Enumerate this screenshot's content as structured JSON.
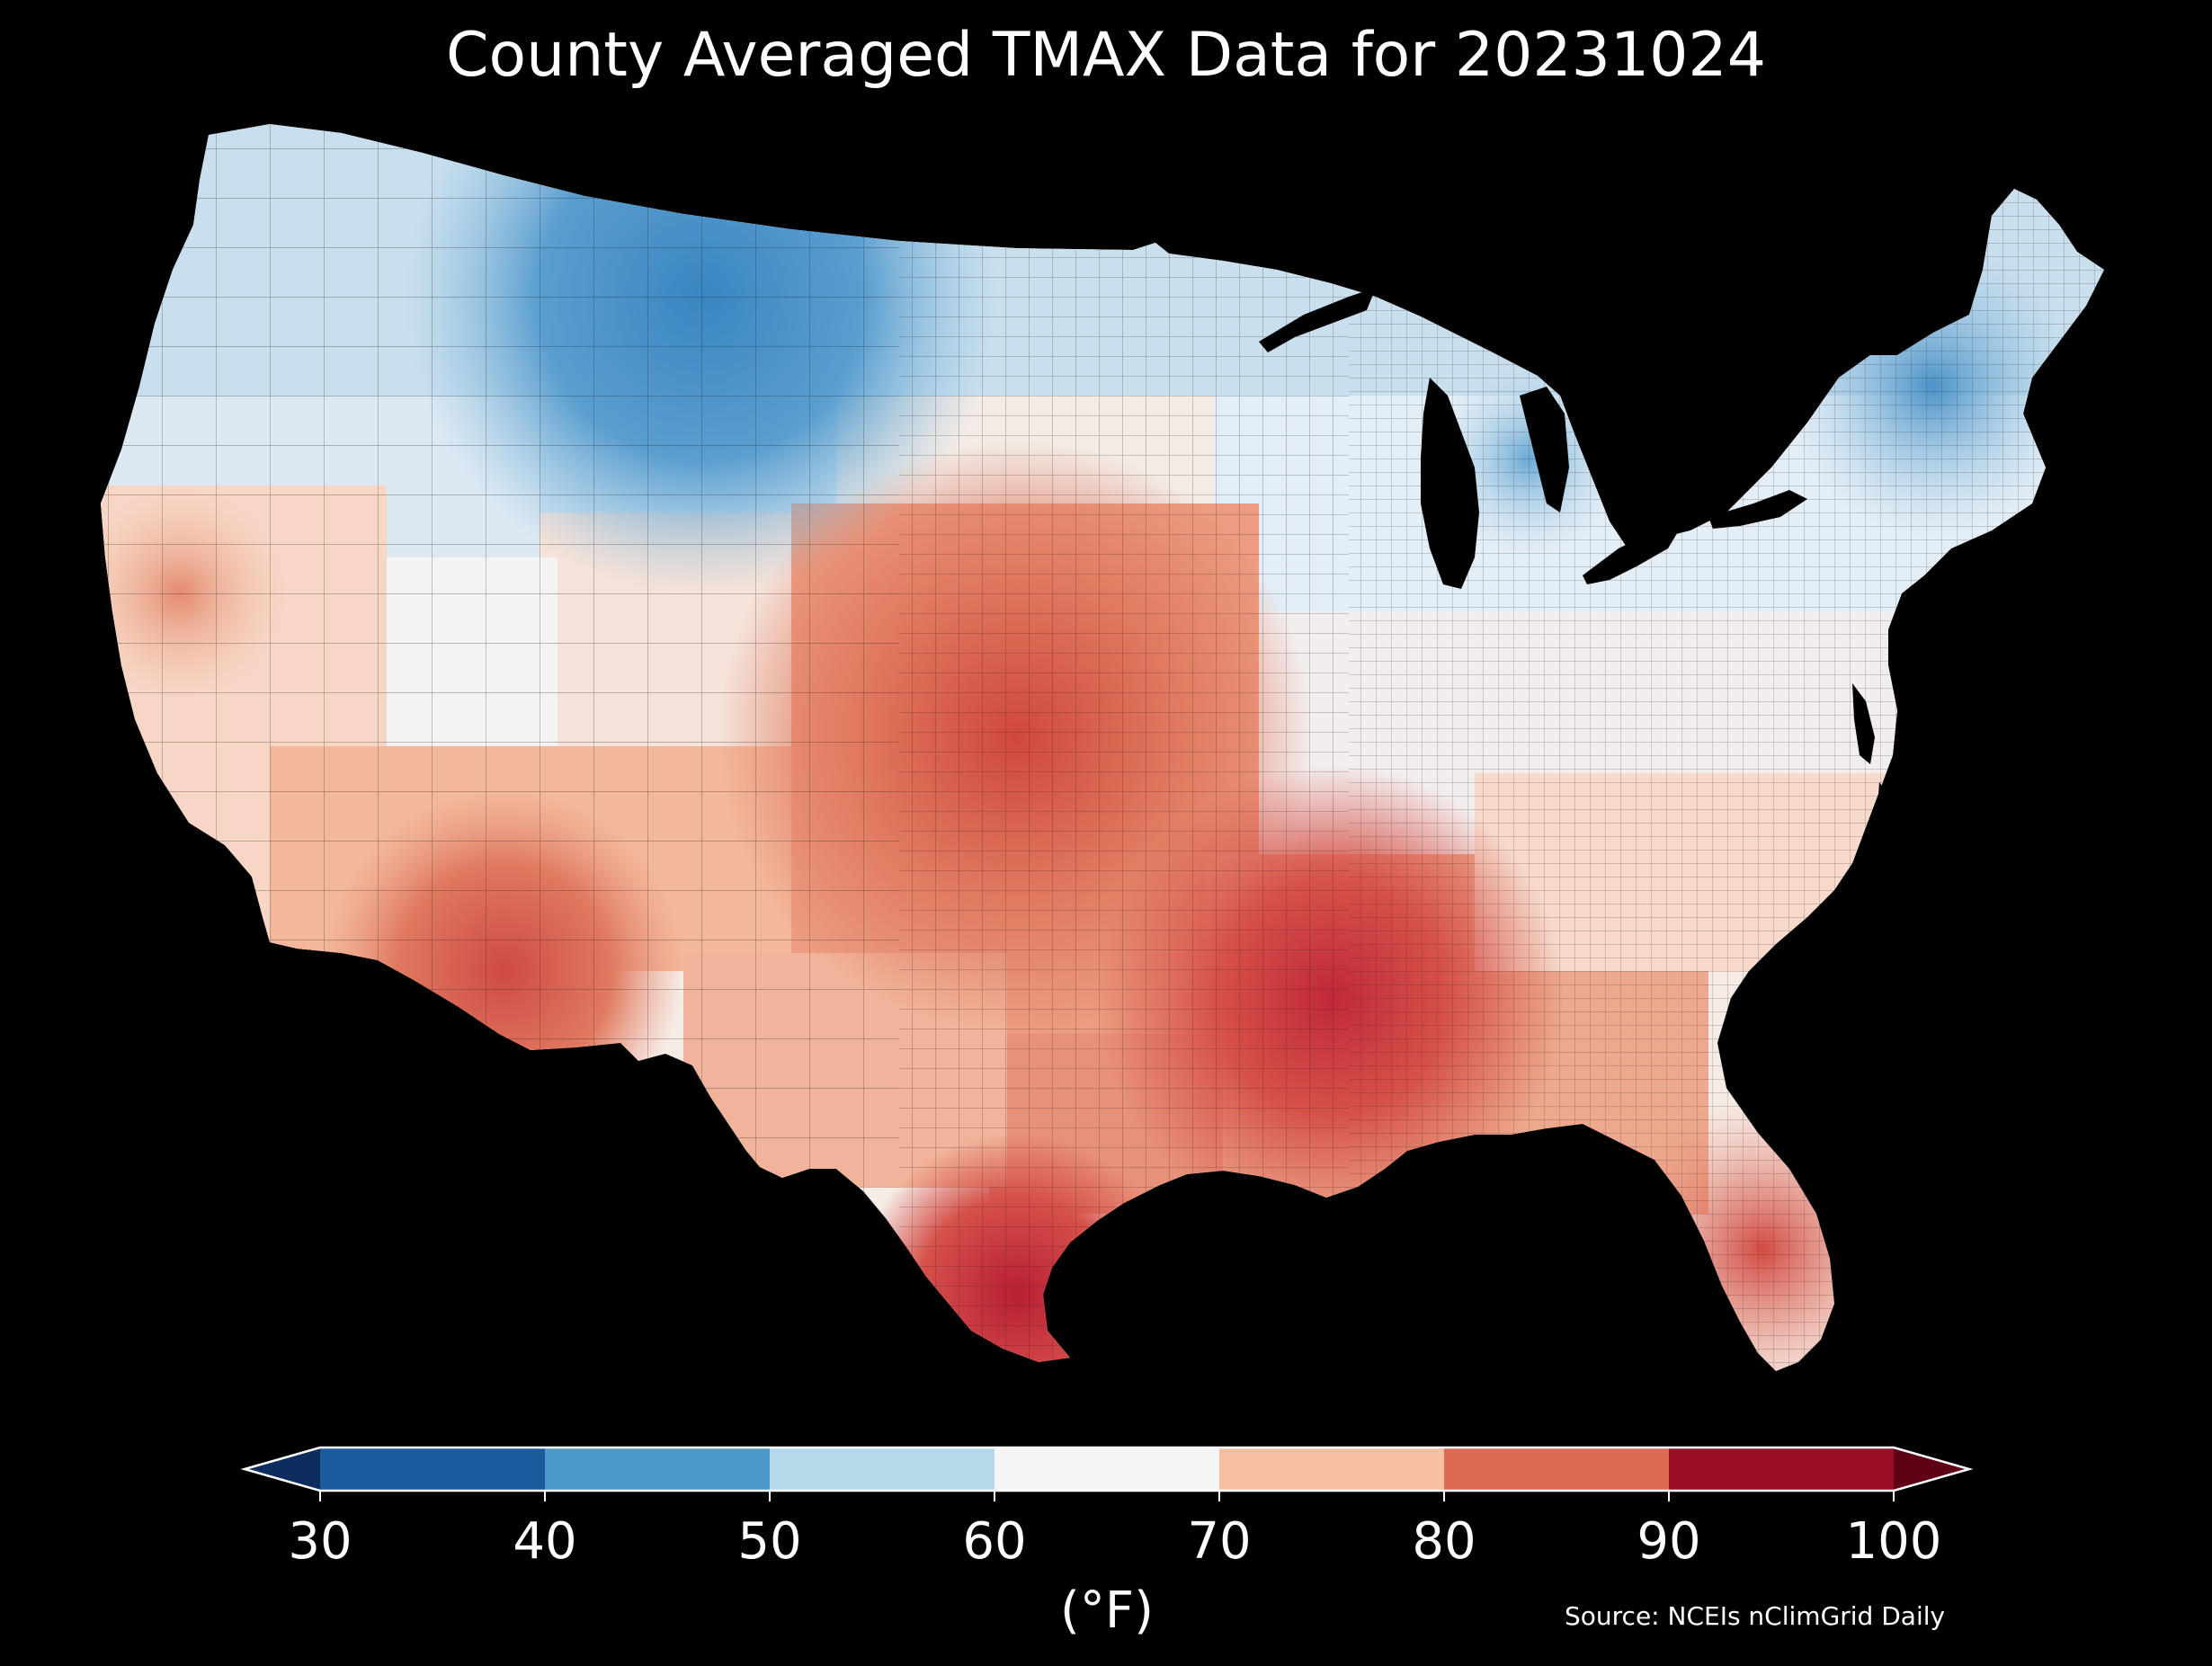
{
  "title": "County Averaged TMAX Data for 20231024",
  "source": "Source: NCEIs nClimGrid Daily",
  "colorbar": {
    "unit_label": "(°F)",
    "ticks": [
      "30",
      "40",
      "50",
      "60",
      "70",
      "80",
      "90",
      "100"
    ],
    "bins": [
      {
        "range": "<30",
        "color": "#0c2d5e"
      },
      {
        "range": "30-40",
        "color": "#1b5a9c"
      },
      {
        "range": "40-50",
        "color": "#4b98c8"
      },
      {
        "range": "50-60",
        "color": "#b7d8ea"
      },
      {
        "range": "60-70",
        "color": "#f5f5f5"
      },
      {
        "range": "70-80",
        "color": "#f7bfa2"
      },
      {
        "range": "80-90",
        "color": "#dc6b55"
      },
      {
        "range": "90-100",
        "color": "#990f25"
      },
      {
        "range": ">100",
        "color": "#5e0115"
      }
    ]
  },
  "map": {
    "region": "Contiguous United States",
    "metric": "TMAX",
    "date": "20231024",
    "background_color": "#000000",
    "border_color": "#1a1a1a",
    "regions_by_temp_band_F": [
      {
        "region": "Northern Rockies / Montana",
        "band": "40-50"
      },
      {
        "region": "Pacific Northwest",
        "band": "50-60"
      },
      {
        "region": "Northern New England",
        "band": "40-50"
      },
      {
        "region": "Northern Michigan",
        "band": "40-50"
      },
      {
        "region": "Great Basin / Utah",
        "band": "50-70"
      },
      {
        "region": "California Central Valley",
        "band": "70-80"
      },
      {
        "region": "Desert Southwest / Arizona",
        "band": "80-90"
      },
      {
        "region": "Central Plains / Kansas / Oklahoma",
        "band": "80-90"
      },
      {
        "region": "Lower Mississippi Valley",
        "band": "80-90"
      },
      {
        "region": "South Texas",
        "band": "80-90"
      },
      {
        "region": "Florida",
        "band": "80-90"
      },
      {
        "region": "Mid-Atlantic / Ohio Valley",
        "band": "60-70"
      },
      {
        "region": "Southeast / Carolinas",
        "band": "70-80"
      }
    ]
  }
}
